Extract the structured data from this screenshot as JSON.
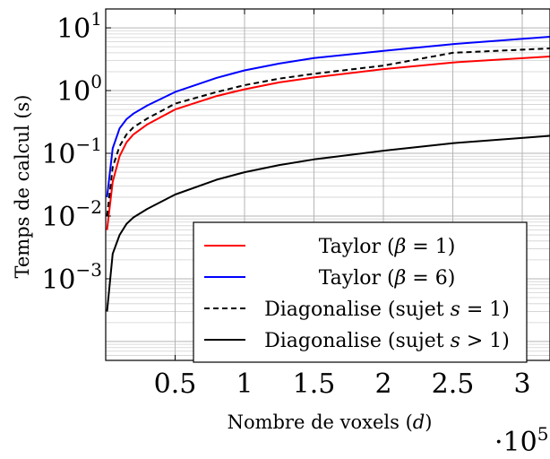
{
  "chart_data": {
    "type": "line",
    "xlabel": "Nombre de voxels (d)",
    "ylabel": "Temps de calcul (s)",
    "x_multiplier_label": "·10",
    "x_multiplier_exponent": "5",
    "xlim": [
      0,
      3.2
    ],
    "ylim": [
      5e-05,
      20
    ],
    "yscale": "log",
    "x_ticks": [
      {
        "value": 0.5,
        "label": "0.5"
      },
      {
        "value": 1,
        "label": "1"
      },
      {
        "value": 1.5,
        "label": "1.5"
      },
      {
        "value": 2,
        "label": "2"
      },
      {
        "value": 2.5,
        "label": "2.5"
      },
      {
        "value": 3,
        "label": "3"
      }
    ],
    "y_ticks": [
      {
        "value": 10,
        "base": "10",
        "exp": "1"
      },
      {
        "value": 1,
        "base": "10",
        "exp": "0"
      },
      {
        "value": 0.1,
        "base": "10",
        "exp": "−1"
      },
      {
        "value": 0.01,
        "base": "10",
        "exp": "−2"
      },
      {
        "value": 0.001,
        "base": "10",
        "exp": "−3"
      }
    ],
    "grid": true,
    "legend_position": "bottom-right",
    "series": [
      {
        "name": "Taylor (β = 1)",
        "color": "#ff0000",
        "dash": "solid",
        "x": [
          0.01,
          0.05,
          0.1,
          0.15,
          0.2,
          0.3,
          0.5,
          0.8,
          1.0,
          1.25,
          1.5,
          2.0,
          2.5,
          3.2
        ],
        "y": [
          0.006,
          0.035,
          0.09,
          0.15,
          0.2,
          0.29,
          0.5,
          0.82,
          1.05,
          1.35,
          1.62,
          2.2,
          2.8,
          3.5
        ]
      },
      {
        "name": "Taylor (β = 6)",
        "color": "#0000ff",
        "dash": "solid",
        "x": [
          0.01,
          0.05,
          0.1,
          0.15,
          0.2,
          0.3,
          0.5,
          0.8,
          1.0,
          1.25,
          1.5,
          2.0,
          2.5,
          3.2
        ],
        "y": [
          0.02,
          0.12,
          0.25,
          0.35,
          0.43,
          0.58,
          0.95,
          1.6,
          2.1,
          2.7,
          3.3,
          4.3,
          5.5,
          7.2
        ]
      },
      {
        "name": "Diagonalise (sujet s = 1)",
        "color": "#000000",
        "dash": "dashed",
        "x": [
          0.01,
          0.05,
          0.1,
          0.15,
          0.2,
          0.3,
          0.5,
          0.8,
          1.0,
          1.25,
          1.5,
          2.0,
          2.5,
          3.2
        ],
        "y": [
          0.01,
          0.06,
          0.13,
          0.2,
          0.26,
          0.36,
          0.62,
          0.95,
          1.22,
          1.55,
          1.85,
          2.5,
          4.0,
          4.7
        ]
      },
      {
        "name": "Diagonalise (sujet s > 1)",
        "color": "#000000",
        "dash": "solid",
        "x": [
          0.01,
          0.05,
          0.1,
          0.15,
          0.2,
          0.3,
          0.5,
          0.8,
          1.0,
          1.25,
          1.5,
          2.0,
          2.5,
          3.2
        ],
        "y": [
          0.0003,
          0.0025,
          0.005,
          0.0075,
          0.0095,
          0.013,
          0.022,
          0.038,
          0.05,
          0.065,
          0.08,
          0.11,
          0.145,
          0.19
        ]
      }
    ],
    "legend": [
      {
        "prefix": "Taylor (",
        "symbol": "β",
        "rel": " = ",
        "value": "1",
        "suffix": ")"
      },
      {
        "prefix": "Taylor (",
        "symbol": "β",
        "rel": " = ",
        "value": "6",
        "suffix": ")"
      },
      {
        "prefix": "Diagonalise (sujet ",
        "symbol": "s",
        "rel": " = ",
        "value": "1",
        "suffix": ")"
      },
      {
        "prefix": "Diagonalise (sujet ",
        "symbol": "s",
        "rel": " > ",
        "value": "1",
        "suffix": ")"
      }
    ]
  }
}
